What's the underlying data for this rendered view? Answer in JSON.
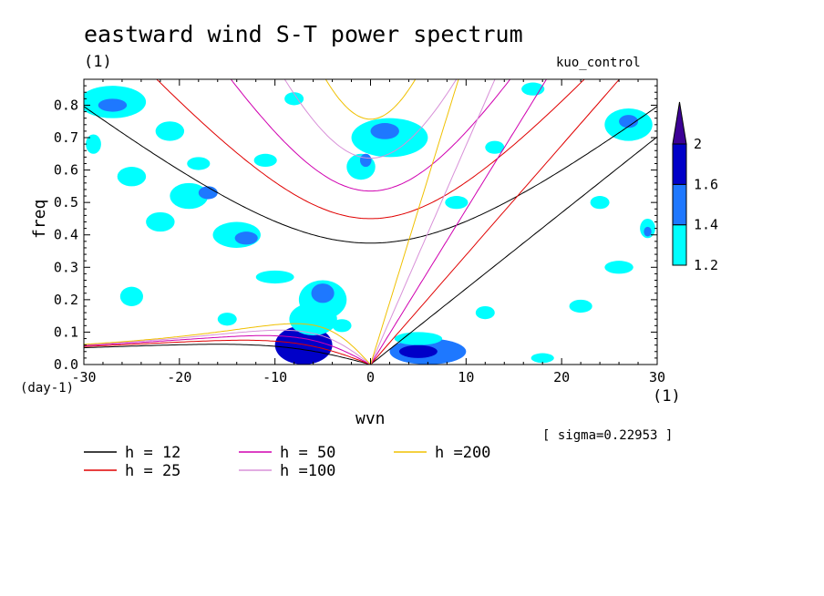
{
  "chart_data": {
    "type": "heatmap",
    "title": "eastward wind S-T power spectrum",
    "title_units": "(1)",
    "case_label": "kuo_control",
    "xlabel": "wvn",
    "x_units": "(1)",
    "ylabel": "freq",
    "y_units": "(day-1)",
    "xlim": [
      -30,
      30
    ],
    "ylim": [
      0,
      0.88
    ],
    "x_ticks": [
      -30,
      -20,
      -10,
      0,
      10,
      20,
      30
    ],
    "x_tick_labels": [
      "-30",
      "-20",
      "-10",
      "0",
      "10",
      "20",
      "30"
    ],
    "y_ticks": [
      0.0,
      0.1,
      0.2,
      0.3,
      0.4,
      0.5,
      0.6,
      0.7,
      0.8
    ],
    "y_tick_labels": [
      "0.0",
      "0.1",
      "0.2",
      "0.3",
      "0.4",
      "0.5",
      "0.6",
      "0.7",
      "0.8"
    ],
    "sigma_label": "[ sigma=0.22953 ]",
    "colorbar": {
      "levels": [
        1.2,
        1.4,
        1.6,
        2
      ],
      "level_labels": [
        "1.2",
        "1.4",
        "1.6",
        "2"
      ],
      "colors": [
        "#00ffff",
        "#1e78ff",
        "#0000c8",
        "#3c0096"
      ]
    },
    "blobs": [
      {
        "x": -7,
        "y": 0.06,
        "rx": 3.0,
        "ry": 0.06,
        "level": 3
      },
      {
        "x": -6,
        "y": 0.14,
        "rx": 2.5,
        "ry": 0.05,
        "level": 1
      },
      {
        "x": -5,
        "y": 0.2,
        "rx": 2.5,
        "ry": 0.06,
        "level": 1
      },
      {
        "x": -5,
        "y": 0.22,
        "rx": 1.2,
        "ry": 0.03,
        "level": 2
      },
      {
        "x": 6,
        "y": 0.04,
        "rx": 4.0,
        "ry": 0.04,
        "level": 2
      },
      {
        "x": 5,
        "y": 0.04,
        "rx": 2.0,
        "ry": 0.02,
        "level": 3
      },
      {
        "x": -14,
        "y": 0.4,
        "rx": 2.5,
        "ry": 0.04,
        "level": 1
      },
      {
        "x": -13,
        "y": 0.39,
        "rx": 1.2,
        "ry": 0.02,
        "level": 2
      },
      {
        "x": 2,
        "y": 0.7,
        "rx": 4.0,
        "ry": 0.06,
        "level": 1
      },
      {
        "x": 1.5,
        "y": 0.72,
        "rx": 1.5,
        "ry": 0.025,
        "level": 2
      },
      {
        "x": -27,
        "y": 0.81,
        "rx": 3.5,
        "ry": 0.05,
        "level": 1
      },
      {
        "x": -27,
        "y": 0.8,
        "rx": 1.5,
        "ry": 0.02,
        "level": 2
      },
      {
        "x": 27,
        "y": 0.74,
        "rx": 2.5,
        "ry": 0.05,
        "level": 1
      },
      {
        "x": 27,
        "y": 0.75,
        "rx": 1.0,
        "ry": 0.02,
        "level": 2
      },
      {
        "x": -1,
        "y": 0.61,
        "rx": 1.5,
        "ry": 0.04,
        "level": 1
      },
      {
        "x": -0.5,
        "y": 0.63,
        "rx": 0.6,
        "ry": 0.02,
        "level": 2
      },
      {
        "x": -21,
        "y": 0.72,
        "rx": 1.5,
        "ry": 0.03,
        "level": 1
      },
      {
        "x": -19,
        "y": 0.52,
        "rx": 2.0,
        "ry": 0.04,
        "level": 1
      },
      {
        "x": -17,
        "y": 0.53,
        "rx": 1.0,
        "ry": 0.02,
        "level": 2
      },
      {
        "x": -25,
        "y": 0.58,
        "rx": 1.5,
        "ry": 0.03,
        "level": 1
      },
      {
        "x": -18,
        "y": 0.62,
        "rx": 1.2,
        "ry": 0.02,
        "level": 1
      },
      {
        "x": -22,
        "y": 0.44,
        "rx": 1.5,
        "ry": 0.03,
        "level": 1
      },
      {
        "x": -10,
        "y": 0.27,
        "rx": 2.0,
        "ry": 0.02,
        "level": 1
      },
      {
        "x": -25,
        "y": 0.21,
        "rx": 1.2,
        "ry": 0.03,
        "level": 1
      },
      {
        "x": 22,
        "y": 0.18,
        "rx": 1.2,
        "ry": 0.02,
        "level": 1
      },
      {
        "x": 12,
        "y": 0.16,
        "rx": 1.0,
        "ry": 0.02,
        "level": 1
      },
      {
        "x": 26,
        "y": 0.3,
        "rx": 1.5,
        "ry": 0.02,
        "level": 1
      },
      {
        "x": 9,
        "y": 0.5,
        "rx": 1.2,
        "ry": 0.02,
        "level": 1
      },
      {
        "x": -11,
        "y": 0.63,
        "rx": 1.2,
        "ry": 0.02,
        "level": 1
      },
      {
        "x": 13,
        "y": 0.67,
        "rx": 1.0,
        "ry": 0.02,
        "level": 1
      },
      {
        "x": 29,
        "y": 0.42,
        "rx": 0.8,
        "ry": 0.03,
        "level": 1
      },
      {
        "x": 29,
        "y": 0.41,
        "rx": 0.4,
        "ry": 0.015,
        "level": 2
      },
      {
        "x": -8,
        "y": 0.82,
        "rx": 1.0,
        "ry": 0.02,
        "level": 1
      },
      {
        "x": 17,
        "y": 0.85,
        "rx": 1.2,
        "ry": 0.02,
        "level": 1
      },
      {
        "x": -29,
        "y": 0.68,
        "rx": 0.8,
        "ry": 0.03,
        "level": 1
      },
      {
        "x": 5,
        "y": 0.08,
        "rx": 2.5,
        "ry": 0.02,
        "level": 1
      },
      {
        "x": -3,
        "y": 0.12,
        "rx": 1.0,
        "ry": 0.02,
        "level": 1
      },
      {
        "x": 18,
        "y": 0.02,
        "rx": 1.2,
        "ry": 0.015,
        "level": 1
      },
      {
        "x": -15,
        "y": 0.14,
        "rx": 1.0,
        "ry": 0.02,
        "level": 1
      },
      {
        "x": 24,
        "y": 0.5,
        "rx": 1.0,
        "ry": 0.02,
        "level": 1
      }
    ],
    "dispersion_curves": [
      {
        "h": 12,
        "label": "h = 12",
        "color": "#000000"
      },
      {
        "h": 25,
        "label": "h = 25",
        "color": "#e00000"
      },
      {
        "h": 50,
        "label": "h = 50",
        "color": "#d000b0"
      },
      {
        "h": 100,
        "label": "h =100",
        "color": "#d890d8"
      },
      {
        "h": 200,
        "label": "h =200",
        "color": "#f0c000"
      }
    ]
  }
}
